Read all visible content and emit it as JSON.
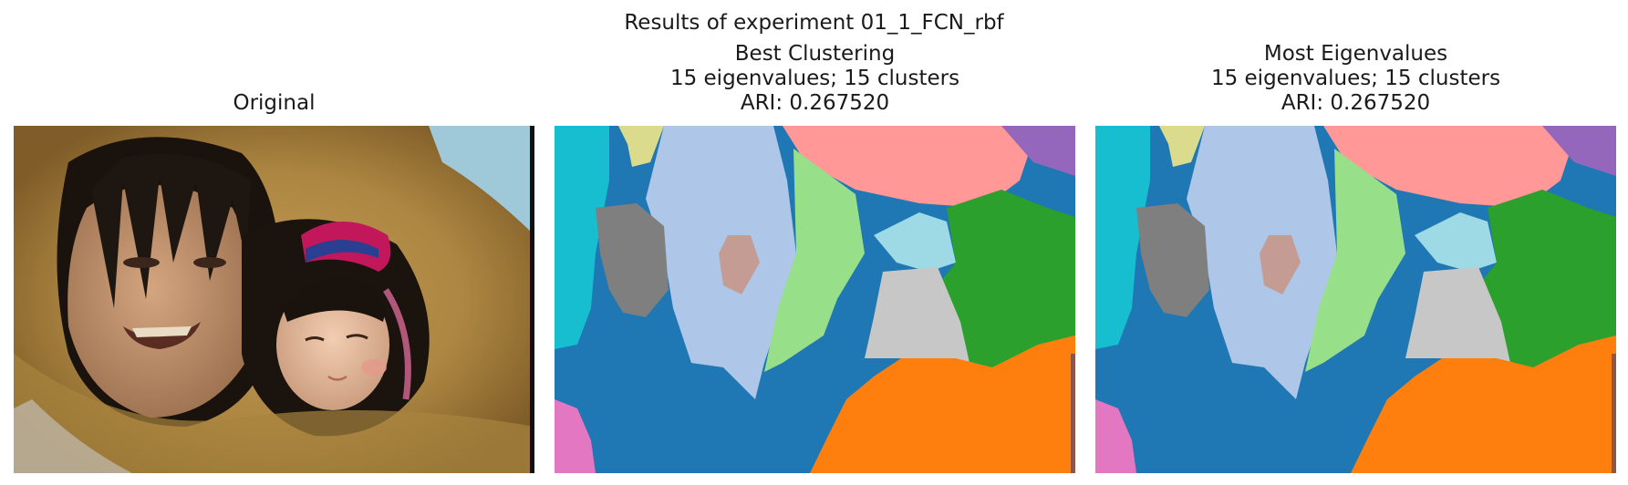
{
  "figure": {
    "suptitle": "Results of experiment 01_1_FCN_rbf"
  },
  "panels": [
    {
      "title_lines": [
        "Original"
      ],
      "image": "photo-woman-and-child-in-fur-hood"
    },
    {
      "title_lines": [
        "Best Clustering",
        "15 eigenvalues; 15 clusters",
        "ARI: 0.267520"
      ],
      "image": "cluster-segmentation-map"
    },
    {
      "title_lines": [
        "Most Eigenvalues",
        "15 eigenvalues; 15 clusters",
        "ARI: 0.267520"
      ],
      "image": "cluster-segmentation-map"
    }
  ],
  "colors": {
    "cluster_blue": "#1f77b4",
    "cluster_orange": "#ff7f0e",
    "cluster_green": "#2ca02c",
    "cluster_light_green": "#98df8a",
    "cluster_pink": "#ff9896",
    "cluster_purple": "#9467bd",
    "cluster_light_blue": "#aec7e8",
    "cluster_cyan": "#17becf",
    "cluster_light_cyan": "#9edae5",
    "cluster_gray": "#7f7f7f",
    "cluster_light_gray": "#c7c7c7",
    "cluster_rose": "#c49c94",
    "cluster_khaki": "#dbdb8d",
    "cluster_magenta": "#e377c2",
    "cluster_brown": "#8c564b"
  }
}
